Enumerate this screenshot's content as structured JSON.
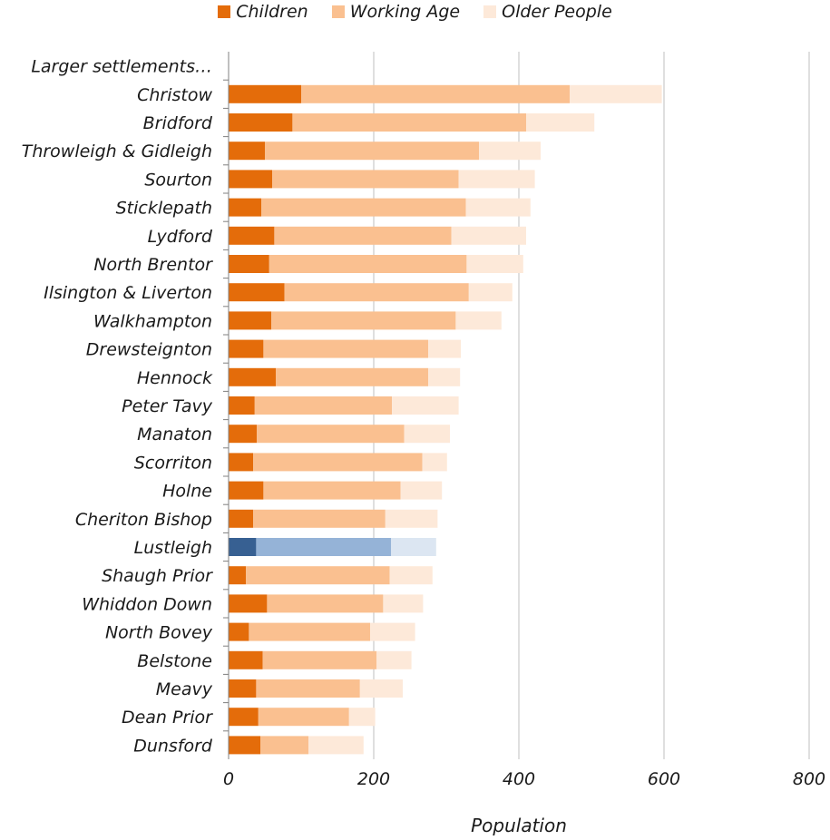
{
  "legend": {
    "children": "Children",
    "working": "Working Age",
    "older": "Older People"
  },
  "colors": {
    "children": "#E46C0A",
    "working": "#FAC090",
    "older": "#FDE9D9",
    "highlight_children": "#376092",
    "highlight_working": "#95B3D7",
    "highlight_older": "#DCE6F2",
    "grid": "#BFBFBF"
  },
  "chart_data": {
    "type": "bar",
    "orientation": "horizontal",
    "stacked": true,
    "header_label": "Larger settlements…",
    "xlabel": "Population",
    "xlim": [
      0,
      800
    ],
    "xticks": [
      0,
      200,
      400,
      600,
      800
    ],
    "grid": true,
    "legend_position": "top",
    "highlight_category": "Lustleigh",
    "categories": [
      "Christow",
      "Bridford",
      "Throwleigh & Gidleigh",
      "Sourton",
      "Sticklepath",
      "Lydford",
      "North Brentor",
      "Ilsington & Liverton",
      "Walkhampton",
      "Drewsteignton",
      "Hennock",
      "Peter Tavy",
      "Manaton",
      "Scorriton",
      "Holne",
      "Cheriton Bishop",
      "Lustleigh",
      "Shaugh Prior",
      "Whiddon Down",
      "North Bovey",
      "Belstone",
      "Meavy",
      "Dean Prior",
      "Dunsford"
    ],
    "series": [
      {
        "name": "Children",
        "values": [
          100,
          88,
          50,
          60,
          45,
          63,
          56,
          77,
          59,
          48,
          65,
          36,
          39,
          34,
          48,
          34,
          38,
          24,
          53,
          28,
          47,
          38,
          41,
          44
        ]
      },
      {
        "name": "Working Age",
        "values": [
          370,
          322,
          295,
          257,
          282,
          244,
          272,
          254,
          254,
          227,
          210,
          189,
          203,
          233,
          189,
          182,
          186,
          198,
          160,
          167,
          157,
          143,
          125,
          66
        ]
      },
      {
        "name": "Older People",
        "values": [
          127,
          94,
          85,
          105,
          89,
          103,
          78,
          60,
          63,
          45,
          44,
          92,
          63,
          34,
          57,
          72,
          62,
          59,
          55,
          62,
          48,
          59,
          36,
          76
        ]
      }
    ]
  }
}
